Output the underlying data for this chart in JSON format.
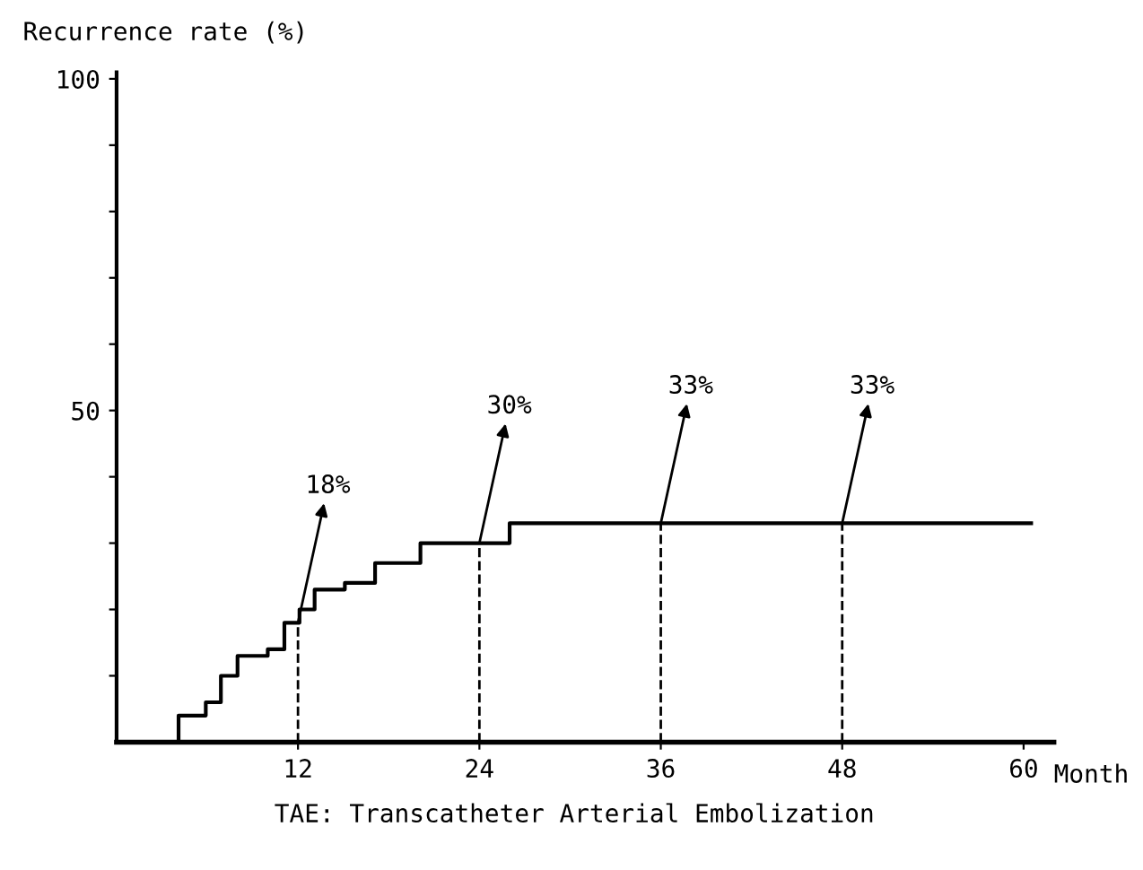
{
  "chart_data": {
    "type": "step",
    "ylabel": "Recurrence rate (%)",
    "xlabel": "Month",
    "series": [
      {
        "color": "#000000",
        "x": [
          0,
          4.1,
          5.9,
          6.9,
          8.0,
          10.0,
          11.1,
          12.1,
          13.1,
          15.1,
          17.1,
          20.1,
          26.0,
          60.5
        ],
        "values": [
          0,
          4,
          6,
          10,
          13,
          14,
          18,
          20,
          23,
          24,
          27,
          30,
          33,
          33
        ]
      },
      {
        "type": "line",
        "line_style": "dashed",
        "color": "#000000",
        "x": [
          12,
          12
        ],
        "values": [
          0,
          18
        ]
      },
      {
        "type": "line",
        "line_style": "dashed",
        "color": "#000000",
        "x": [
          24,
          24
        ],
        "values": [
          0,
          30
        ]
      },
      {
        "type": "line",
        "line_style": "dashed",
        "color": "#000000",
        "x": [
          36,
          36
        ],
        "values": [
          0,
          33
        ]
      },
      {
        "type": "line",
        "line_style": "dashed",
        "color": "#000000",
        "x": [
          48,
          48
        ],
        "values": [
          0,
          33
        ]
      }
    ],
    "xlim": [
      0,
      62
    ],
    "xticks": [
      12,
      24,
      36,
      48,
      60
    ],
    "ylim": [
      0,
      101
    ],
    "yticks": [
      {
        "value": 10,
        "label": null
      },
      {
        "value": 20,
        "label": null
      },
      {
        "value": 30,
        "label": null
      },
      {
        "value": 40,
        "label": null
      },
      50,
      {
        "value": 60,
        "label": null
      },
      {
        "value": 70,
        "label": null
      },
      {
        "value": 80,
        "label": null
      },
      {
        "value": 90,
        "label": null
      },
      100
    ],
    "annotations": [
      {
        "text": "18%",
        "x": 12,
        "y": 18
      },
      {
        "text": "30%",
        "x": 24,
        "y": 30
      },
      {
        "text": "33%",
        "x": 36,
        "y": 33
      },
      {
        "text": "33%",
        "x": 48,
        "y": 33
      },
      "TAE: Transcatheter Arterial Embolization"
    ],
    "grid": false,
    "legend": false
  }
}
